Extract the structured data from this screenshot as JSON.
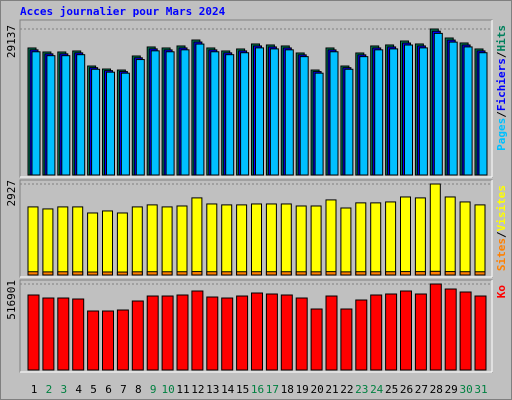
{
  "chart_data": [
    {
      "type": "bar",
      "title": "Acces journalier pour Mars 2024",
      "ylim": [
        0,
        29137
      ],
      "yticks": [
        29137
      ],
      "series": [
        {
          "name": "Hits",
          "color": "#00805c",
          "values": [
            25350,
            24550,
            24550,
            24750,
            21750,
            21150,
            20950,
            23750,
            25550,
            25350,
            25750,
            26940,
            25350,
            24750,
            25150,
            26150,
            25950,
            25750,
            24350,
            20950,
            25350,
            21750,
            24350,
            25750,
            25950,
            26740,
            26150,
            29137,
            27340,
            26350,
            25150
          ]
        },
        {
          "name": "Fichiers",
          "color": "#0000ff",
          "values": [
            24970,
            24180,
            24180,
            24380,
            21420,
            20830,
            20640,
            23390,
            25170,
            24970,
            25360,
            26540,
            24970,
            24380,
            24770,
            25760,
            25560,
            25360,
            23980,
            20640,
            24970,
            21420,
            23980,
            25360,
            25560,
            26340,
            25760,
            28700,
            26930,
            25950,
            24770
          ]
        },
        {
          "name": "Pages",
          "color": "#00c0ff",
          "values": [
            24590,
            23810,
            23810,
            24010,
            21100,
            20520,
            20320,
            23040,
            24780,
            24590,
            24980,
            26130,
            24590,
            24010,
            24400,
            25370,
            25170,
            24980,
            23620,
            20320,
            24590,
            21100,
            23620,
            24980,
            25170,
            25940,
            25370,
            28260,
            26520,
            25560,
            24400
          ]
        }
      ]
    },
    {
      "type": "bar",
      "ylim": [
        0,
        2927
      ],
      "yticks": [
        2927
      ],
      "series": [
        {
          "name": "Visites",
          "color": "#ffff00",
          "values": [
            2190,
            2125,
            2190,
            2190,
            1995,
            2060,
            1995,
            2190,
            2255,
            2190,
            2220,
            2480,
            2285,
            2255,
            2255,
            2285,
            2285,
            2285,
            2220,
            2220,
            2415,
            2155,
            2320,
            2320,
            2350,
            2510,
            2480,
            2927,
            2510,
            2350,
            2255
          ]
        },
        {
          "name": "Sites",
          "color": "#ff8000",
          "values": [
            105,
            100,
            104,
            102,
            96,
            98,
            95,
            103,
            106,
            104,
            105,
            110,
            106,
            104,
            105,
            106,
            106,
            105,
            104,
            103,
            108,
            101,
            106,
            105,
            106,
            110,
            109,
            118,
            110,
            106,
            104
          ]
        }
      ]
    },
    {
      "type": "bar",
      "ylim": [
        0,
        516901
      ],
      "yticks": [
        516901
      ],
      "categories": [
        "1",
        "2",
        "3",
        "4",
        "5",
        "6",
        "7",
        "8",
        "9",
        "10",
        "11",
        "12",
        "13",
        "14",
        "15",
        "16",
        "17",
        "18",
        "19",
        "20",
        "21",
        "22",
        "23",
        "24",
        "25",
        "26",
        "27",
        "28",
        "29",
        "30",
        "31"
      ],
      "weekends": [
        1,
        2,
        8,
        9,
        15,
        16,
        22,
        23,
        29,
        30
      ],
      "weekend_color": "#008040",
      "series": [
        {
          "name": "Ko",
          "color": "#ff0000",
          "values": [
            450800,
            432700,
            432700,
            426700,
            354600,
            354600,
            360600,
            414700,
            444700,
            444700,
            450800,
            474800,
            438700,
            432700,
            444700,
            462800,
            456800,
            450800,
            432700,
            366600,
            444700,
            366600,
            420700,
            450800,
            456800,
            474800,
            456800,
            516901,
            486800,
            468800,
            444700
          ]
        }
      ]
    }
  ],
  "legend_separator": "/"
}
